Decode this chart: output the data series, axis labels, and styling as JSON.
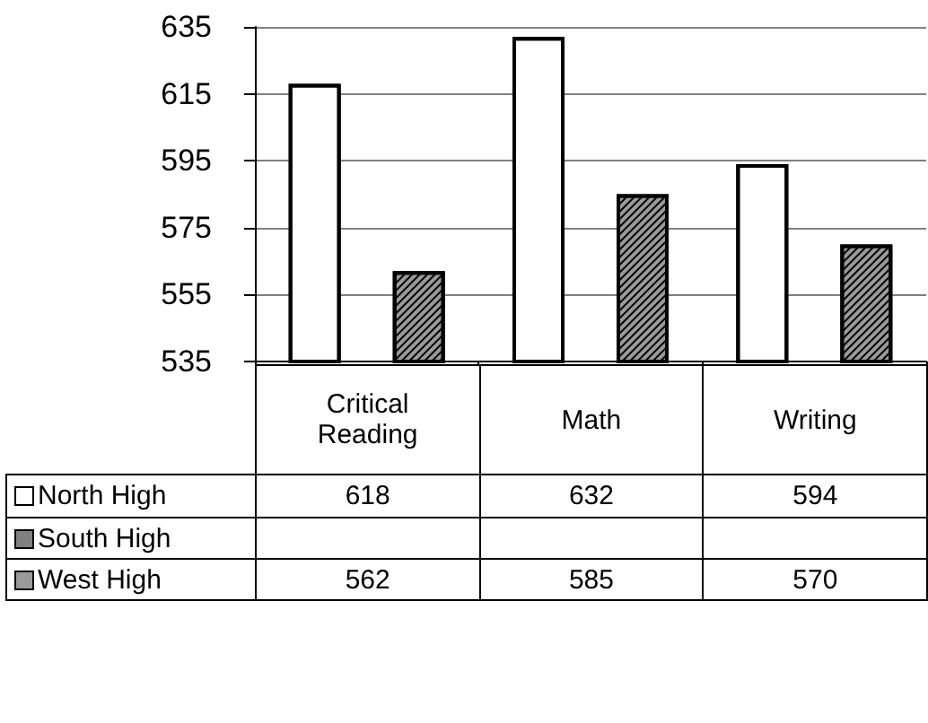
{
  "chart_data": {
    "type": "bar",
    "categories": [
      "Critical Reading",
      "Math",
      "Writing"
    ],
    "series": [
      {
        "name": "North High",
        "color": "#ffffff",
        "values": [
          618,
          632,
          594
        ]
      },
      {
        "name": "South High",
        "color": "#808080",
        "values": [
          null,
          null,
          null
        ]
      },
      {
        "name": "West High",
        "color": "#9a9a9a",
        "values": [
          562,
          585,
          570
        ]
      }
    ],
    "ylim": [
      535,
      635
    ],
    "yticks": [
      535,
      555,
      575,
      595,
      615,
      635
    ],
    "grid": "y",
    "legend": "bottom",
    "data_labels": true
  }
}
